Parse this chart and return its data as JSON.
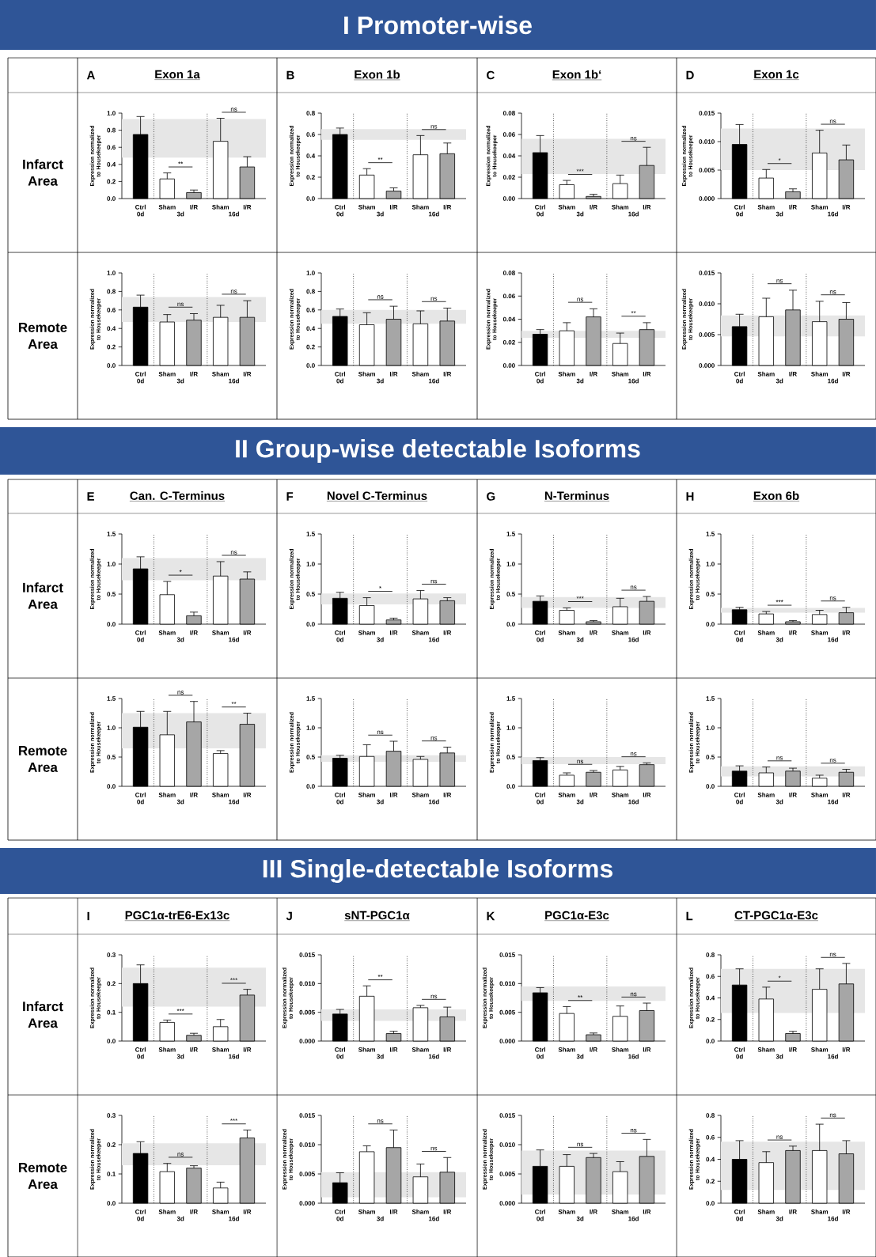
{
  "chart_data": [
    {
      "type": "bar",
      "title": "Exon 1a",
      "subtitle": "A",
      "ylabel": "Expression normalized to Housekeeper",
      "categories": [
        "Ctrl",
        "Sham",
        "I/R",
        "Sham",
        "I/R"
      ],
      "colors": [
        "#000000",
        "#ffffff",
        "#a6a6a6",
        "#ffffff",
        "#a6a6a6"
      ],
      "ylim": [
        0,
        1
      ],
      "yticks": [
        {
          "value": 0,
          "label": "0.0"
        },
        0.2,
        0.4,
        0.6,
        0.8,
        {
          "value": 1,
          "label": "1.0"
        }
      ],
      "values": [
        0.75,
        0.23,
        0.07,
        0.67,
        0.37
      ],
      "errors": [
        0.21,
        0.07,
        0.03,
        0.27,
        0.12
      ],
      "bands": [
        {
          "axis": "y",
          "from": 0.48,
          "to": 0.93,
          "color": "#e6e6e6"
        }
      ],
      "annotations": [
        "0d",
        "3d",
        "16d",
        "**",
        "ns",
        "Infarct Area",
        "I Promoter-wise"
      ]
    },
    {
      "type": "bar",
      "title": "Exon 1b",
      "subtitle": "B",
      "ylabel": "Expression normalized to Housekeeper",
      "categories": [
        "Ctrl",
        "Sham",
        "I/R",
        "Sham",
        "I/R"
      ],
      "colors": [
        "#000000",
        "#ffffff",
        "#a6a6a6",
        "#ffffff",
        "#a6a6a6"
      ],
      "ylim": [
        0,
        0.8
      ],
      "yticks": [
        {
          "value": 0,
          "label": "0.0"
        },
        0.2,
        0.4,
        0.6,
        0.8
      ],
      "values": [
        0.6,
        0.22,
        0.07,
        0.41,
        0.42
      ],
      "errors": [
        0.06,
        0.06,
        0.03,
        0.18,
        0.1
      ],
      "bands": [
        {
          "axis": "y",
          "from": 0.55,
          "to": 0.65,
          "color": "#e6e6e6"
        }
      ],
      "annotations": [
        "0d",
        "3d",
        "16d",
        "**",
        "ns"
      ]
    },
    {
      "type": "bar",
      "title": "Exon 1b‘",
      "subtitle": "C",
      "ylabel": "Expression normalized to Housekeeper",
      "categories": [
        "Ctrl",
        "Sham",
        "I/R",
        "Sham",
        "I/R"
      ],
      "colors": [
        "#000000",
        "#ffffff",
        "#a6a6a6",
        "#ffffff",
        "#a6a6a6"
      ],
      "ylim": [
        0,
        0.08
      ],
      "yticks": [
        {
          "value": 0,
          "label": "0.00"
        },
        0.02,
        0.04,
        0.06,
        0.08
      ],
      "values": [
        0.043,
        0.013,
        0.002,
        0.014,
        0.031
      ],
      "errors": [
        0.016,
        0.004,
        0.002,
        0.008,
        0.017
      ],
      "bands": [
        {
          "axis": "y",
          "from": 0.023,
          "to": 0.056,
          "color": "#e6e6e6"
        }
      ],
      "annotations": [
        "0d",
        "3d",
        "16d",
        "***",
        "ns"
      ]
    },
    {
      "type": "bar",
      "title": "Exon 1c",
      "subtitle": "D",
      "ylabel": "Expression normalized to Housekeeper",
      "categories": [
        "Ctrl",
        "Sham",
        "I/R",
        "Sham",
        "I/R"
      ],
      "colors": [
        "#000000",
        "#ffffff",
        "#a6a6a6",
        "#ffffff",
        "#a6a6a6"
      ],
      "ylim": [
        0,
        0.015
      ],
      "yticks": [
        {
          "value": 0,
          "label": "0.000"
        },
        0.005,
        {
          "value": 0.01,
          "label": "0.010"
        },
        0.015
      ],
      "values": [
        0.0095,
        0.0036,
        0.0012,
        0.008,
        0.0068
      ],
      "errors": [
        0.0035,
        0.0015,
        0.0005,
        0.004,
        0.0026
      ],
      "bands": [
        {
          "axis": "y",
          "from": 0.005,
          "to": 0.0123,
          "color": "#e6e6e6"
        }
      ],
      "annotations": [
        "0d",
        "3d",
        "16d",
        "*",
        "ns"
      ]
    },
    {
      "type": "bar",
      "ylabel": "Expression normalized to Housekeeper",
      "categories": [
        "Ctrl",
        "Sham",
        "I/R",
        "Sham",
        "I/R"
      ],
      "colors": [
        "#000000",
        "#ffffff",
        "#a6a6a6",
        "#ffffff",
        "#a6a6a6"
      ],
      "ylim": [
        0,
        1
      ],
      "yticks": [
        {
          "value": 0,
          "label": "0.0"
        },
        0.2,
        0.4,
        0.6,
        0.8,
        {
          "value": 1,
          "label": "1.0"
        }
      ],
      "values": [
        0.63,
        0.47,
        0.49,
        0.52,
        0.52
      ],
      "errors": [
        0.13,
        0.08,
        0.07,
        0.13,
        0.18
      ],
      "bands": [
        {
          "axis": "y",
          "from": 0.47,
          "to": 0.74,
          "color": "#e6e6e6"
        }
      ],
      "annotations": [
        "0d",
        "3d",
        "16d",
        "ns",
        "ns",
        "Remote Area"
      ]
    },
    {
      "type": "bar",
      "ylabel": "Expression normalized to Housekeeper",
      "categories": [
        "Ctrl",
        "Sham",
        "I/R",
        "Sham",
        "I/R"
      ],
      "colors": [
        "#000000",
        "#ffffff",
        "#a6a6a6",
        "#ffffff",
        "#a6a6a6"
      ],
      "ylim": [
        0,
        1
      ],
      "yticks": [
        {
          "value": 0,
          "label": "0.0"
        },
        0.2,
        0.4,
        0.6,
        0.8,
        {
          "value": 1,
          "label": "1.0"
        }
      ],
      "values": [
        0.53,
        0.44,
        0.5,
        0.45,
        0.48
      ],
      "errors": [
        0.08,
        0.13,
        0.14,
        0.14,
        0.14
      ],
      "bands": [
        {
          "axis": "y",
          "from": 0.45,
          "to": 0.6,
          "color": "#e6e6e6"
        }
      ],
      "annotations": [
        "0d",
        "3d",
        "16d",
        "ns",
        "ns"
      ]
    },
    {
      "type": "bar",
      "ylabel": "Expression normalized to Housekeeper",
      "categories": [
        "Ctrl",
        "Sham",
        "I/R",
        "Sham",
        "I/R"
      ],
      "colors": [
        "#000000",
        "#ffffff",
        "#a6a6a6",
        "#ffffff",
        "#a6a6a6"
      ],
      "ylim": [
        0,
        0.08
      ],
      "yticks": [
        {
          "value": 0,
          "label": "0.00"
        },
        0.02,
        0.04,
        0.06,
        0.08
      ],
      "values": [
        0.027,
        0.03,
        0.042,
        0.019,
        0.031
      ],
      "errors": [
        0.004,
        0.007,
        0.007,
        0.009,
        0.006
      ],
      "bands": [
        {
          "axis": "y",
          "from": 0.024,
          "to": 0.03,
          "color": "#e6e6e6"
        }
      ],
      "annotations": [
        "0d",
        "3d",
        "16d",
        "ns",
        "**"
      ]
    },
    {
      "type": "bar",
      "ylabel": "Expression normalized to Housekeeper",
      "categories": [
        "Ctrl",
        "Sham",
        "I/R",
        "Sham",
        "I/R"
      ],
      "colors": [
        "#000000",
        "#ffffff",
        "#a6a6a6",
        "#ffffff",
        "#a6a6a6"
      ],
      "ylim": [
        0,
        0.015
      ],
      "yticks": [
        {
          "value": 0,
          "label": "0.000"
        },
        0.005,
        {
          "value": 0.01,
          "label": "0.010"
        },
        0.015
      ],
      "values": [
        0.0063,
        0.0079,
        0.009,
        0.0071,
        0.0075
      ],
      "errors": [
        0.002,
        0.003,
        0.0032,
        0.0033,
        0.0027
      ],
      "bands": [
        {
          "axis": "y",
          "from": 0.0047,
          "to": 0.0081,
          "color": "#e6e6e6"
        }
      ],
      "annotations": [
        "0d",
        "3d",
        "16d",
        "ns",
        "ns"
      ]
    },
    {
      "type": "bar",
      "title": "Can. C-Terminus",
      "subtitle": "E",
      "ylabel": "Expression normalized to Housekeeper",
      "categories": [
        "Ctrl",
        "Sham",
        "I/R",
        "Sham",
        "I/R"
      ],
      "colors": [
        "#000000",
        "#ffffff",
        "#a6a6a6",
        "#ffffff",
        "#a6a6a6"
      ],
      "ylim": [
        0,
        1.5
      ],
      "yticks": [
        {
          "value": 0,
          "label": "0.0"
        },
        0.5,
        {
          "value": 1,
          "label": "1.0"
        },
        1.5
      ],
      "values": [
        0.92,
        0.49,
        0.14,
        0.8,
        0.75
      ],
      "errors": [
        0.2,
        0.22,
        0.06,
        0.24,
        0.12
      ],
      "bands": [
        {
          "axis": "y",
          "from": 0.73,
          "to": 1.1,
          "color": "#e6e6e6"
        }
      ],
      "annotations": [
        "0d",
        "3d",
        "16d",
        "*",
        "ns",
        "Infarct Area",
        "II Group-wise detectable Isoforms"
      ]
    },
    {
      "type": "bar",
      "title": "Novel C-Terminus",
      "subtitle": "F",
      "ylabel": "Expression normalized to Housekeeper",
      "categories": [
        "Ctrl",
        "Sham",
        "I/R",
        "Sham",
        "I/R"
      ],
      "colors": [
        "#000000",
        "#ffffff",
        "#a6a6a6",
        "#ffffff",
        "#a6a6a6"
      ],
      "ylim": [
        0,
        1.5
      ],
      "yticks": [
        {
          "value": 0,
          "label": "0.0"
        },
        0.5,
        {
          "value": 1,
          "label": "1.0"
        },
        1.5
      ],
      "values": [
        0.43,
        0.31,
        0.07,
        0.42,
        0.39
      ],
      "errors": [
        0.1,
        0.13,
        0.03,
        0.14,
        0.05
      ],
      "bands": [
        {
          "axis": "y",
          "from": 0.33,
          "to": 0.51,
          "color": "#e6e6e6"
        }
      ],
      "annotations": [
        "0d",
        "3d",
        "16d",
        "*",
        "ns"
      ]
    },
    {
      "type": "bar",
      "title": "N-Terminus",
      "subtitle": "G",
      "ylabel": "Expression normalized to Housekeeper",
      "categories": [
        "Ctrl",
        "Sham",
        "I/R",
        "Sham",
        "I/R"
      ],
      "colors": [
        "#000000",
        "#ffffff",
        "#a6a6a6",
        "#ffffff",
        "#a6a6a6"
      ],
      "ylim": [
        0,
        1.5
      ],
      "yticks": [
        {
          "value": 0,
          "label": "0.0"
        },
        0.5,
        {
          "value": 1,
          "label": "1.0"
        },
        1.5
      ],
      "values": [
        0.38,
        0.23,
        0.04,
        0.29,
        0.38
      ],
      "errors": [
        0.09,
        0.04,
        0.02,
        0.14,
        0.08
      ],
      "bands": [
        {
          "axis": "y",
          "from": 0.27,
          "to": 0.45,
          "color": "#e6e6e6"
        }
      ],
      "annotations": [
        "0d",
        "3d",
        "16d",
        "***",
        "ns"
      ]
    },
    {
      "type": "bar",
      "title": "Exon 6b",
      "subtitle": "H",
      "ylabel": "Expression normalized to Housekeeper",
      "categories": [
        "Ctrl",
        "Sham",
        "I/R",
        "Sham",
        "I/R"
      ],
      "colors": [
        "#000000",
        "#ffffff",
        "#a6a6a6",
        "#ffffff",
        "#a6a6a6"
      ],
      "ylim": [
        0,
        1.5
      ],
      "yticks": [
        {
          "value": 0,
          "label": "0.0"
        },
        0.5,
        {
          "value": 1,
          "label": "1.0"
        },
        1.5
      ],
      "values": [
        0.24,
        0.17,
        0.04,
        0.16,
        0.19
      ],
      "errors": [
        0.04,
        0.04,
        0.02,
        0.07,
        0.09
      ],
      "bands": [
        {
          "axis": "y",
          "from": 0.19,
          "to": 0.27,
          "color": "#e6e6e6"
        }
      ],
      "annotations": [
        "0d",
        "3d",
        "16d",
        "***",
        "ns"
      ]
    },
    {
      "type": "bar",
      "ylabel": "Expression normalized to Housekeeper",
      "categories": [
        "Ctrl",
        "Sham",
        "I/R",
        "Sham",
        "I/R"
      ],
      "colors": [
        "#000000",
        "#ffffff",
        "#a6a6a6",
        "#ffffff",
        "#a6a6a6"
      ],
      "ylim": [
        0,
        1.5
      ],
      "yticks": [
        {
          "value": 0,
          "label": "0.0"
        },
        0.5,
        {
          "value": 1,
          "label": "1.0"
        },
        1.5
      ],
      "values": [
        1.01,
        0.88,
        1.1,
        0.56,
        1.06
      ],
      "errors": [
        0.27,
        0.4,
        0.35,
        0.05,
        0.19
      ],
      "bands": [
        {
          "axis": "y",
          "from": 0.65,
          "to": 1.25,
          "color": "#e6e6e6"
        }
      ],
      "annotations": [
        "0d",
        "3d",
        "16d",
        "ns",
        "**",
        "Remote Area"
      ]
    },
    {
      "type": "bar",
      "ylabel": "Expression normalized to Housekeeper",
      "categories": [
        "Ctrl",
        "Sham",
        "I/R",
        "Sham",
        "I/R"
      ],
      "colors": [
        "#000000",
        "#ffffff",
        "#a6a6a6",
        "#ffffff",
        "#a6a6a6"
      ],
      "ylim": [
        0,
        1.5
      ],
      "yticks": [
        {
          "value": 0,
          "label": "0.0"
        },
        0.5,
        {
          "value": 1,
          "label": "1.0"
        },
        1.5
      ],
      "values": [
        0.48,
        0.51,
        0.6,
        0.46,
        0.57
      ],
      "errors": [
        0.05,
        0.2,
        0.17,
        0.05,
        0.1
      ],
      "bands": [
        {
          "axis": "y",
          "from": 0.42,
          "to": 0.53,
          "color": "#e6e6e6"
        }
      ],
      "annotations": [
        "0d",
        "3d",
        "16d",
        "ns",
        "ns"
      ]
    },
    {
      "type": "bar",
      "ylabel": "Expression normalized to Housekeeper",
      "categories": [
        "Ctrl",
        "Sham",
        "I/R",
        "Sham",
        "I/R"
      ],
      "colors": [
        "#000000",
        "#ffffff",
        "#a6a6a6",
        "#ffffff",
        "#a6a6a6"
      ],
      "ylim": [
        0,
        1.5
      ],
      "yticks": [
        {
          "value": 0,
          "label": "0.0"
        },
        0.5,
        {
          "value": 1,
          "label": "1.0"
        },
        1.5
      ],
      "values": [
        0.44,
        0.19,
        0.24,
        0.28,
        0.37
      ],
      "errors": [
        0.05,
        0.04,
        0.03,
        0.06,
        0.03
      ],
      "bands": [
        {
          "axis": "y",
          "from": 0.38,
          "to": 0.5,
          "color": "#e6e6e6"
        }
      ],
      "annotations": [
        "0d",
        "3d",
        "16d",
        "ns",
        "ns"
      ]
    },
    {
      "type": "bar",
      "ylabel": "Expression normalized to Housekeeper",
      "categories": [
        "Ctrl",
        "Sham",
        "I/R",
        "Sham",
        "I/R"
      ],
      "colors": [
        "#000000",
        "#ffffff",
        "#a6a6a6",
        "#ffffff",
        "#a6a6a6"
      ],
      "ylim": [
        0,
        1.5
      ],
      "yticks": [
        {
          "value": 0,
          "label": "0.0"
        },
        0.5,
        {
          "value": 1,
          "label": "1.0"
        },
        1.5
      ],
      "values": [
        0.26,
        0.23,
        0.26,
        0.14,
        0.24
      ],
      "errors": [
        0.09,
        0.1,
        0.05,
        0.05,
        0.05
      ],
      "bands": [
        {
          "axis": "y",
          "from": 0.17,
          "to": 0.34,
          "color": "#e6e6e6"
        }
      ],
      "annotations": [
        "0d",
        "3d",
        "16d",
        "ns",
        "ns"
      ]
    },
    {
      "type": "bar",
      "title": "PGC1α-trE6-Ex13c",
      "subtitle": "I",
      "ylabel": "Expression normalized to Housekeeper",
      "categories": [
        "Ctrl",
        "Sham",
        "I/R",
        "Sham",
        "I/R"
      ],
      "colors": [
        "#000000",
        "#ffffff",
        "#a6a6a6",
        "#ffffff",
        "#a6a6a6"
      ],
      "ylim": [
        0,
        0.3
      ],
      "yticks": [
        {
          "value": 0,
          "label": "0.0"
        },
        0.1,
        0.2,
        0.3
      ],
      "values": [
        0.2,
        0.065,
        0.02,
        0.05,
        0.16
      ],
      "errors": [
        0.065,
        0.008,
        0.007,
        0.025,
        0.02
      ],
      "bands": [
        {
          "axis": "y",
          "from": 0.12,
          "to": 0.255,
          "color": "#e6e6e6"
        }
      ],
      "annotations": [
        "0d",
        "3d",
        "16d",
        "***",
        "***",
        "Infarct Area",
        "III Single-detectable Isoforms"
      ]
    },
    {
      "type": "bar",
      "title": "sNT-PGC1α",
      "subtitle": "J",
      "ylabel": "Expression normalized to Housekeeper",
      "categories": [
        "Ctrl",
        "Sham",
        "I/R",
        "Sham",
        "I/R"
      ],
      "colors": [
        "#000000",
        "#ffffff",
        "#a6a6a6",
        "#ffffff",
        "#a6a6a6"
      ],
      "ylim": [
        0,
        0.015
      ],
      "yticks": [
        {
          "value": 0,
          "label": "0.000"
        },
        0.005,
        {
          "value": 0.01,
          "label": "0.010"
        },
        0.015
      ],
      "values": [
        0.0047,
        0.0078,
        0.0013,
        0.0058,
        0.0042
      ],
      "errors": [
        0.0008,
        0.0018,
        0.0004,
        0.0004,
        0.0017
      ],
      "bands": [
        {
          "axis": "y",
          "from": 0.0035,
          "to": 0.0055,
          "color": "#e6e6e6"
        }
      ],
      "annotations": [
        "0d",
        "3d",
        "16d",
        "**",
        "ns"
      ]
    },
    {
      "type": "bar",
      "title": "PGC1α-E3c",
      "subtitle": "K",
      "ylabel": "Expression normalized to Housekeeper",
      "categories": [
        "Ctrl",
        "Sham",
        "I/R",
        "Sham",
        "I/R"
      ],
      "colors": [
        "#000000",
        "#ffffff",
        "#a6a6a6",
        "#ffffff",
        "#a6a6a6"
      ],
      "ylim": [
        0,
        0.015
      ],
      "yticks": [
        {
          "value": 0,
          "label": "0.000"
        },
        0.005,
        {
          "value": 0.01,
          "label": "0.010"
        },
        0.015
      ],
      "values": [
        0.0084,
        0.0048,
        0.0011,
        0.0043,
        0.0053
      ],
      "errors": [
        0.0009,
        0.0012,
        0.0003,
        0.0018,
        0.0013
      ],
      "bands": [
        {
          "axis": "y",
          "from": 0.007,
          "to": 0.0095,
          "color": "#e6e6e6"
        }
      ],
      "annotations": [
        "0d",
        "3d",
        "16d",
        "**",
        "ns"
      ]
    },
    {
      "type": "bar",
      "title": "CT-PGC1α-E3c",
      "subtitle": "L",
      "ylabel": "Expression normalized to Housekeeper",
      "categories": [
        "Ctrl",
        "Sham",
        "I/R",
        "Sham",
        "I/R"
      ],
      "colors": [
        "#000000",
        "#ffffff",
        "#a6a6a6",
        "#ffffff",
        "#a6a6a6"
      ],
      "ylim": [
        0,
        0.8
      ],
      "yticks": [
        {
          "value": 0,
          "label": "0.0"
        },
        0.2,
        0.4,
        0.6,
        0.8
      ],
      "values": [
        0.52,
        0.39,
        0.07,
        0.48,
        0.53
      ],
      "errors": [
        0.15,
        0.11,
        0.02,
        0.19,
        0.19
      ],
      "bands": [
        {
          "axis": "y",
          "from": 0.26,
          "to": 0.67,
          "color": "#e6e6e6"
        }
      ],
      "annotations": [
        "0d",
        "3d",
        "16d",
        "*",
        "ns"
      ]
    },
    {
      "type": "bar",
      "ylabel": "Expression normalized to Housekeeper",
      "categories": [
        "Ctrl",
        "Sham",
        "I/R",
        "Sham",
        "I/R"
      ],
      "colors": [
        "#000000",
        "#ffffff",
        "#a6a6a6",
        "#ffffff",
        "#a6a6a6"
      ],
      "ylim": [
        0,
        0.3
      ],
      "yticks": [
        {
          "value": 0,
          "label": "0.0"
        },
        0.1,
        0.2,
        0.3
      ],
      "values": [
        0.17,
        0.108,
        0.12,
        0.052,
        0.223
      ],
      "errors": [
        0.04,
        0.028,
        0.008,
        0.02,
        0.027
      ],
      "bands": [
        {
          "axis": "y",
          "from": 0.13,
          "to": 0.205,
          "color": "#e6e6e6"
        }
      ],
      "annotations": [
        "0d",
        "3d",
        "16d",
        "ns",
        "***",
        "Remote Area"
      ]
    },
    {
      "type": "bar",
      "ylabel": "Expression normalized to Housekeeper",
      "categories": [
        "Ctrl",
        "Sham",
        "I/R",
        "Sham",
        "I/R"
      ],
      "colors": [
        "#000000",
        "#ffffff",
        "#a6a6a6",
        "#ffffff",
        "#a6a6a6"
      ],
      "ylim": [
        0,
        0.015
      ],
      "yticks": [
        {
          "value": 0,
          "label": "0.000"
        },
        0.005,
        {
          "value": 0.01,
          "label": "0.010"
        },
        0.015
      ],
      "values": [
        0.0035,
        0.0088,
        0.0095,
        0.0045,
        0.0053
      ],
      "errors": [
        0.0017,
        0.001,
        0.003,
        0.0022,
        0.0025
      ],
      "bands": [
        {
          "axis": "y",
          "from": 0.001,
          "to": 0.0053,
          "color": "#e6e6e6"
        }
      ],
      "annotations": [
        "0d",
        "3d",
        "16d",
        "ns",
        "ns"
      ]
    },
    {
      "type": "bar",
      "ylabel": "Expression normalized to Housekeeper",
      "categories": [
        "Ctrl",
        "Sham",
        "I/R",
        "Sham",
        "I/R"
      ],
      "colors": [
        "#000000",
        "#ffffff",
        "#a6a6a6",
        "#ffffff",
        "#a6a6a6"
      ],
      "ylim": [
        0,
        0.015
      ],
      "yticks": [
        {
          "value": 0,
          "label": "0.000"
        },
        0.005,
        {
          "value": 0.01,
          "label": "0.010"
        },
        0.015
      ],
      "values": [
        0.0063,
        0.0063,
        0.0078,
        0.0054,
        0.008
      ],
      "errors": [
        0.0028,
        0.002,
        0.0007,
        0.0017,
        0.0029
      ],
      "bands": [
        {
          "axis": "y",
          "from": 0.0015,
          "to": 0.009,
          "color": "#e6e6e6"
        }
      ],
      "annotations": [
        "0d",
        "3d",
        "16d",
        "ns",
        "ns"
      ]
    },
    {
      "type": "bar",
      "ylabel": "Expression normalized to Housekeeper",
      "categories": [
        "Ctrl",
        "Sham",
        "I/R",
        "Sham",
        "I/R"
      ],
      "colors": [
        "#000000",
        "#ffffff",
        "#a6a6a6",
        "#ffffff",
        "#a6a6a6"
      ],
      "ylim": [
        0,
        0.8
      ],
      "yticks": [
        {
          "value": 0,
          "label": "0.0"
        },
        0.2,
        0.4,
        0.6,
        0.8
      ],
      "values": [
        0.4,
        0.37,
        0.48,
        0.48,
        0.45
      ],
      "errors": [
        0.17,
        0.1,
        0.04,
        0.24,
        0.12
      ],
      "bands": [
        {
          "axis": "y",
          "from": 0.12,
          "to": 0.56,
          "color": "#e6e6e6"
        }
      ],
      "annotations": [
        "0d",
        "3d",
        "16d",
        "ns",
        "ns"
      ]
    }
  ]
}
